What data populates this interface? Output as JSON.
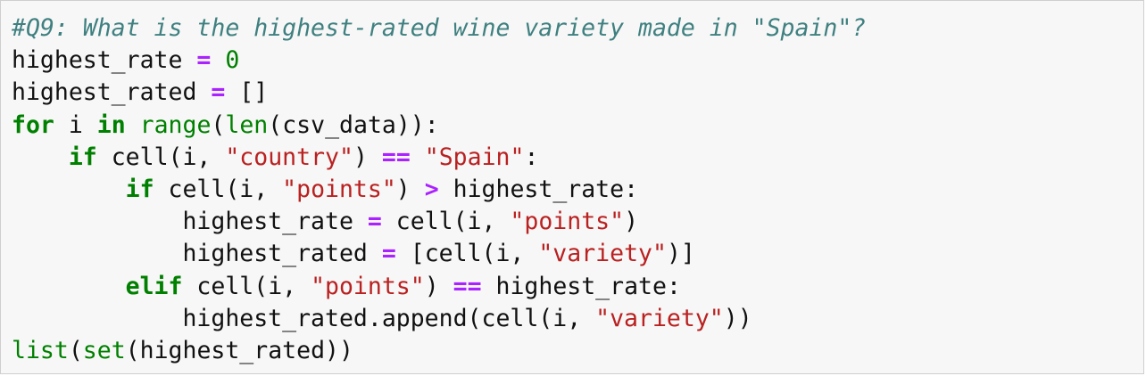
{
  "cell": {
    "lines": [
      [
        {
          "t": "#Q9: What is the highest-rated wine variety made in \"Spain\"?",
          "c": "cmt"
        }
      ],
      [
        {
          "t": "highest_rate ",
          "c": "txt"
        },
        {
          "t": "=",
          "c": "op"
        },
        {
          "t": " ",
          "c": "txt"
        },
        {
          "t": "0",
          "c": "num"
        }
      ],
      [
        {
          "t": "highest_rated ",
          "c": "txt"
        },
        {
          "t": "=",
          "c": "op"
        },
        {
          "t": " []",
          "c": "txt"
        }
      ],
      [
        {
          "t": "for",
          "c": "kw"
        },
        {
          "t": " i ",
          "c": "txt"
        },
        {
          "t": "in",
          "c": "kw"
        },
        {
          "t": " ",
          "c": "txt"
        },
        {
          "t": "range",
          "c": "bi"
        },
        {
          "t": "(",
          "c": "txt"
        },
        {
          "t": "len",
          "c": "bi"
        },
        {
          "t": "(csv_data)):",
          "c": "txt"
        }
      ],
      [
        {
          "t": "    ",
          "c": "txt"
        },
        {
          "t": "if",
          "c": "kw"
        },
        {
          "t": " cell(i, ",
          "c": "txt"
        },
        {
          "t": "\"country\"",
          "c": "str"
        },
        {
          "t": ") ",
          "c": "txt"
        },
        {
          "t": "==",
          "c": "op"
        },
        {
          "t": " ",
          "c": "txt"
        },
        {
          "t": "\"Spain\"",
          "c": "str"
        },
        {
          "t": ":",
          "c": "txt"
        }
      ],
      [
        {
          "t": "        ",
          "c": "txt"
        },
        {
          "t": "if",
          "c": "kw"
        },
        {
          "t": " cell(i, ",
          "c": "txt"
        },
        {
          "t": "\"points\"",
          "c": "str"
        },
        {
          "t": ") ",
          "c": "txt"
        },
        {
          "t": ">",
          "c": "op"
        },
        {
          "t": " highest_rate:",
          "c": "txt"
        }
      ],
      [
        {
          "t": "            highest_rate ",
          "c": "txt"
        },
        {
          "t": "=",
          "c": "op"
        },
        {
          "t": " cell(i, ",
          "c": "txt"
        },
        {
          "t": "\"points\"",
          "c": "str"
        },
        {
          "t": ")",
          "c": "txt"
        }
      ],
      [
        {
          "t": "            highest_rated ",
          "c": "txt"
        },
        {
          "t": "=",
          "c": "op"
        },
        {
          "t": " [cell(i, ",
          "c": "txt"
        },
        {
          "t": "\"variety\"",
          "c": "str"
        },
        {
          "t": ")]",
          "c": "txt"
        }
      ],
      [
        {
          "t": "        ",
          "c": "txt"
        },
        {
          "t": "elif",
          "c": "kw"
        },
        {
          "t": " cell(i, ",
          "c": "txt"
        },
        {
          "t": "\"points\"",
          "c": "str"
        },
        {
          "t": ") ",
          "c": "txt"
        },
        {
          "t": "==",
          "c": "op"
        },
        {
          "t": " highest_rate:",
          "c": "txt"
        }
      ],
      [
        {
          "t": "            highest_rated.append(cell(i, ",
          "c": "txt"
        },
        {
          "t": "\"variety\"",
          "c": "str"
        },
        {
          "t": "))",
          "c": "txt"
        }
      ],
      [
        {
          "t": "list",
          "c": "bi"
        },
        {
          "t": "(",
          "c": "txt"
        },
        {
          "t": "set",
          "c": "bi"
        },
        {
          "t": "(highest_rated))",
          "c": "txt"
        }
      ]
    ]
  }
}
